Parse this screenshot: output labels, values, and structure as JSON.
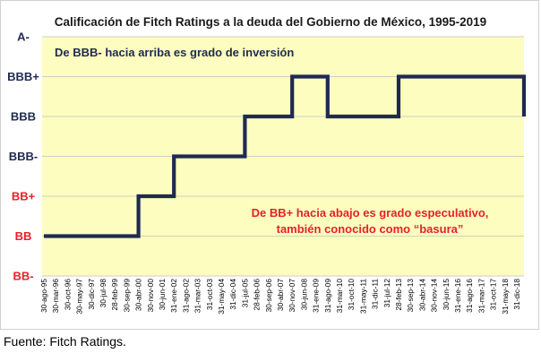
{
  "chart_data": {
    "type": "line",
    "line_shape": "step",
    "title": "Calificación de Fitch Ratings a la deuda del Gobierno de México, 1995-2019",
    "ylabel": "",
    "xlabel": "",
    "y_categories": [
      {
        "label": "BB-",
        "color": "#e8202a"
      },
      {
        "label": "BB",
        "color": "#e8202a"
      },
      {
        "label": "BB+",
        "color": "#e8202a"
      },
      {
        "label": "BBB-",
        "color": "#1f2a52"
      },
      {
        "label": "BBB",
        "color": "#1f2a52"
      },
      {
        "label": "BBB+",
        "color": "#1f2a52"
      },
      {
        "label": "A-",
        "color": "#1f2a52"
      }
    ],
    "x_tick_labels": [
      "30-ago-95",
      "30-mar-96",
      "30-oct-96",
      "30-may-97",
      "30-dic-97",
      "30-jul-98",
      "28-feb-99",
      "30-sep-99",
      "30-abr-00",
      "30-nov-00",
      "30-jun-01",
      "31-ene-02",
      "31-ago-02",
      "31-mar-03",
      "31-oct-03",
      "31-may-04",
      "31-dic-04",
      "31-jul-05",
      "28-feb-06",
      "30-sep-06",
      "30-abr-07",
      "30-nov-07",
      "30-jun-08",
      "31-ene-09",
      "31-ago-09",
      "31-mar-10",
      "31-oct-10",
      "31-may-11",
      "31-dic-11",
      "31-jul-12",
      "28-feb-13",
      "30-sep-13",
      "30-abr-14",
      "30-nov-14",
      "30-jun-15",
      "31-ene-16",
      "31-ago-16",
      "31-mar-17",
      "31-oct-17",
      "31-may-18",
      "31-dic-18"
    ],
    "series": [
      {
        "name": "",
        "color": "#1f2a52",
        "points": [
          {
            "x": "30-ago-95",
            "y": "BB"
          },
          {
            "x": "30-abr-00",
            "y": "BB+"
          },
          {
            "x": "31-ene-02",
            "y": "BBB-"
          },
          {
            "x": "31-jul-05",
            "y": "BBB"
          },
          {
            "x": "30-nov-07",
            "y": "BBB+"
          },
          {
            "x": "31-ago-09",
            "y": "BBB"
          },
          {
            "x": "28-feb-13",
            "y": "BBB+"
          },
          {
            "x": "31-dic-18",
            "y": "BBB+"
          },
          {
            "x": "31-may-19",
            "y": "BBB"
          }
        ]
      }
    ],
    "plot_background": "#fdfdbf",
    "grid": "horizontal",
    "legend": "none",
    "annotations": [
      {
        "text": "De BBB- hacia arriba es grado de inversión",
        "color": "#1f2a52"
      },
      {
        "text": "De BB+ hacia abajo es grado especulativo,",
        "color": "#e8202a"
      },
      {
        "text": "también conocido como “basura”",
        "color": "#e8202a"
      }
    ]
  },
  "source_note": "Fuente: Fitch Ratings."
}
